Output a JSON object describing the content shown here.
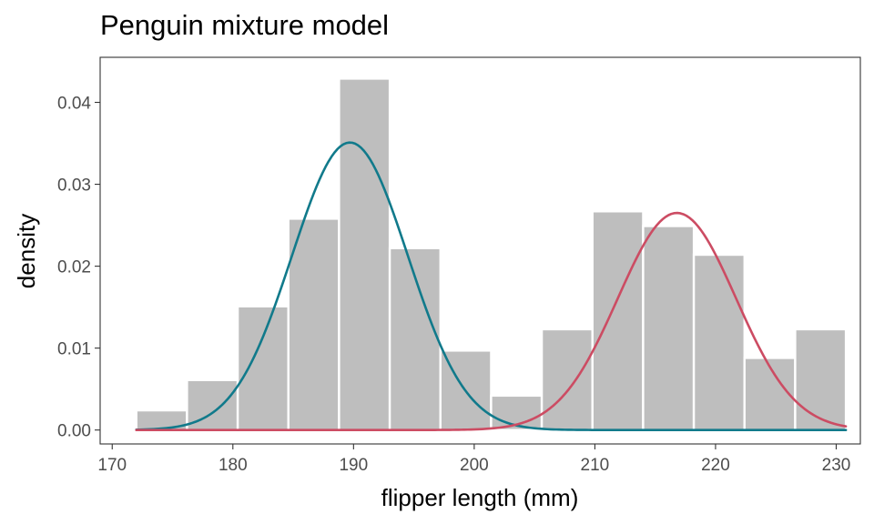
{
  "chart_data": {
    "type": "histogram",
    "title": "Penguin mixture model",
    "xlabel": "flipper length (mm)",
    "ylabel": "density",
    "xlim": [
      169,
      932
    ],
    "ylim": [
      -0.0017,
      0.0455
    ],
    "x_ticks": [
      170,
      180,
      190,
      200,
      210,
      220,
      230
    ],
    "y_ticks": [
      0.0,
      0.01,
      0.02,
      0.03,
      0.04
    ],
    "y_tick_labels": [
      "0.00",
      "0.01",
      "0.02",
      "0.03",
      "0.04"
    ],
    "grid": false,
    "legend": "none",
    "bar_color": "#bebebe",
    "bins": [
      {
        "x0": 172,
        "x1": 176.2,
        "density": 0.0024
      },
      {
        "x0": 176.2,
        "x1": 180.4,
        "density": 0.0061
      },
      {
        "x0": 180.4,
        "x1": 184.6,
        "density": 0.0151
      },
      {
        "x0": 184.6,
        "x1": 188.8,
        "density": 0.0258
      },
      {
        "x0": 188.8,
        "x1": 193.0,
        "density": 0.0429
      },
      {
        "x0": 193.0,
        "x1": 197.2,
        "density": 0.0222
      },
      {
        "x0": 197.2,
        "x1": 201.4,
        "density": 0.0097
      },
      {
        "x0": 201.4,
        "x1": 205.6,
        "density": 0.0042
      },
      {
        "x0": 205.6,
        "x1": 209.8,
        "density": 0.0123
      },
      {
        "x0": 209.8,
        "x1": 214.0,
        "density": 0.0267
      },
      {
        "x0": 214.0,
        "x1": 218.2,
        "density": 0.0249
      },
      {
        "x0": 218.2,
        "x1": 222.4,
        "density": 0.0214
      },
      {
        "x0": 222.4,
        "x1": 226.6,
        "density": 0.0088
      },
      {
        "x0": 226.6,
        "x1": 230.8,
        "density": 0.0123
      }
    ],
    "components": [
      {
        "color": "#117a8b",
        "mean": 189.7,
        "peak_density": 0.0351,
        "sd": 4.8
      },
      {
        "color": "#cc4c63",
        "mean": 216.8,
        "peak_density": 0.0265,
        "sd": 4.9
      }
    ],
    "curve_x_range": [
      172,
      230.8
    ]
  }
}
